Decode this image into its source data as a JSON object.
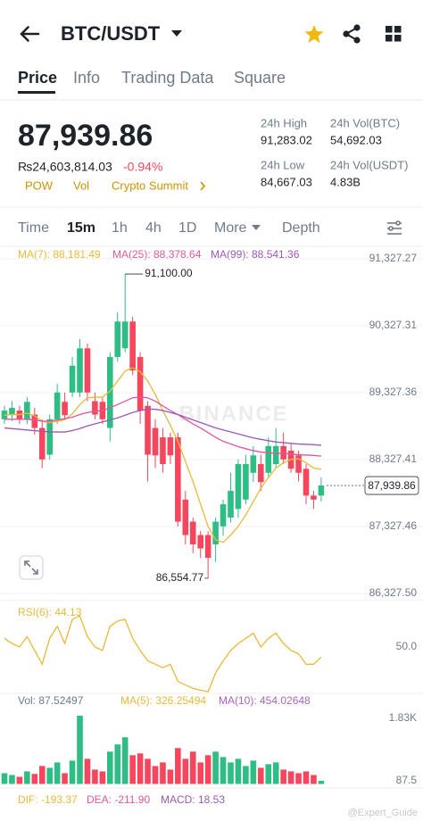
{
  "header": {
    "pair": "BTC/USDT"
  },
  "tabs": [
    "Price",
    "Info",
    "Trading Data",
    "Square"
  ],
  "ticker": {
    "price": "87,939.86",
    "fiat": "₨24,603,814.03",
    "change": "-0.94%",
    "tags": [
      "POW",
      "Vol",
      "Crypto Summit"
    ],
    "stats": [
      {
        "label": "24h High",
        "value": "91,283.02"
      },
      {
        "label": "24h Vol(BTC)",
        "value": "54,692.03"
      },
      {
        "label": "24h Low",
        "value": "84,667.03"
      },
      {
        "label": "24h Vol(USDT)",
        "value": "4.83B"
      }
    ]
  },
  "intervals": [
    "Time",
    "15m",
    "1h",
    "4h",
    "1D",
    "More",
    "Depth"
  ],
  "watermark": "BINANCE",
  "credit": "@Expert_Guide",
  "chart_data": [
    {
      "type": "candlestick",
      "legend": [
        "MA(7): 88,181.49",
        "MA(25): 88,378.64",
        "MA(99): 88,541.36"
      ],
      "up_color": "#2ebd85",
      "down_color": "#f6465d",
      "open": [
        88930,
        88990,
        89060,
        88930,
        89000,
        88800,
        88400,
        88930,
        89190,
        89330,
        89330,
        89990,
        89200,
        89190,
        88800,
        89860,
        89990,
        90390,
        89860,
        89130,
        88800,
        88660,
        88660,
        88660,
        87730,
        87400,
        87200,
        87200,
        87060,
        87330,
        87460,
        87590,
        87730,
        88130,
        88260,
        88130,
        88260,
        88530,
        88460,
        88390,
        88190,
        87790,
        87790
      ],
      "high": [
        89130,
        89200,
        89130,
        89260,
        89100,
        88930,
        89000,
        89460,
        89330,
        89860,
        90130,
        90060,
        89330,
        89260,
        89930,
        90530,
        91100,
        90460,
        89930,
        89200,
        88930,
        88800,
        88730,
        88730,
        87860,
        87460,
        87260,
        87260,
        87460,
        87730,
        88130,
        88330,
        88400,
        88530,
        88400,
        88660,
        88800,
        88730,
        88560,
        88460,
        88260,
        87860,
        88060
      ],
      "low": [
        88860,
        88900,
        88860,
        88860,
        88700,
        88200,
        88330,
        88860,
        88930,
        89260,
        89260,
        89200,
        88930,
        88860,
        88600,
        89790,
        89930,
        89590,
        88860,
        88000,
        88200,
        88130,
        88260,
        87330,
        87060,
        86930,
        86860,
        86554.77,
        86800,
        87190,
        87390,
        87460,
        87660,
        87990,
        87860,
        88060,
        88200,
        88260,
        88130,
        88000,
        87660,
        87590,
        87700
      ],
      "close": [
        89060,
        89100,
        88930,
        89190,
        88800,
        88330,
        88930,
        89330,
        88990,
        89730,
        89990,
        89330,
        89000,
        88930,
        89860,
        90390,
        90390,
        89660,
        89060,
        88400,
        88390,
        88260,
        88390,
        87400,
        87200,
        87060,
        87000,
        86860,
        87400,
        87660,
        87860,
        88260,
        88260,
        88390,
        87990,
        88530,
        88530,
        88330,
        88190,
        88130,
        87790,
        87730,
        87939.86
      ],
      "series": [
        {
          "color": "#e8b93a",
          "values": [
            88990,
            89000,
            89000,
            89020,
            88980,
            88900,
            88880,
            88900,
            88920,
            89010,
            89150,
            89250,
            89260,
            89260,
            89350,
            89500,
            89650,
            89700,
            89640,
            89500,
            89300,
            89060,
            88840,
            88600,
            88300,
            88000,
            87660,
            87330,
            87130,
            87090,
            87200,
            87330,
            87500,
            87700,
            87900,
            88060,
            88200,
            88280,
            88330,
            88340,
            88280,
            88200,
            88181.49
          ]
        },
        {
          "color": "#e0589b",
          "values": [
            88930,
            88930,
            88930,
            88930,
            88920,
            88900,
            88900,
            88920,
            88940,
            88960,
            89000,
            89030,
            89050,
            89060,
            89100,
            89150,
            89200,
            89250,
            89260,
            89250,
            89200,
            89130,
            89060,
            89000,
            88930,
            88860,
            88800,
            88730,
            88660,
            88600,
            88560,
            88520,
            88490,
            88460,
            88440,
            88430,
            88420,
            88420,
            88410,
            88400,
            88395,
            88390,
            88378.64
          ]
        },
        {
          "color": "#9b59b6",
          "values": [
            88800,
            88790,
            88780,
            88770,
            88760,
            88750,
            88740,
            88740,
            88740,
            88760,
            88790,
            88830,
            88860,
            88890,
            88920,
            88950,
            88990,
            89030,
            89060,
            89080,
            89080,
            89060,
            89030,
            89000,
            88960,
            88920,
            88880,
            88840,
            88800,
            88770,
            88740,
            88710,
            88680,
            88650,
            88630,
            88610,
            88590,
            88580,
            88570,
            88560,
            88555,
            88550,
            88541.36
          ]
        }
      ],
      "ylim": [
        86327.5,
        91327.27
      ],
      "yticks": [
        {
          "value": 91327.27,
          "label": "91,327.27"
        },
        {
          "value": 90327.31,
          "label": "90,327.31"
        },
        {
          "value": 89327.36,
          "label": "89,327.36"
        },
        {
          "value": 88327.41,
          "label": "88,327.41"
        },
        {
          "value": 87327.46,
          "label": "87,327.46"
        },
        {
          "value": 86327.5,
          "label": "86,327.50"
        }
      ],
      "grid": true,
      "annotations": [
        {
          "value": 91100,
          "label": "91,100.00"
        },
        {
          "value": 86554.77,
          "label": "86,554.77"
        }
      ],
      "last_price": {
        "value": 87939.86,
        "label": "87,939.86"
      }
    },
    {
      "type": "line",
      "legend": "RSI(6): 44.13",
      "color": "#e8b93a",
      "values": [
        55,
        52,
        50,
        56,
        48,
        40,
        55,
        62,
        52,
        66,
        68,
        56,
        50,
        48,
        62,
        65,
        66,
        55,
        48,
        42,
        40,
        38,
        40,
        30,
        28,
        26,
        25,
        24,
        35,
        42,
        48,
        52,
        55,
        58,
        50,
        55,
        58,
        52,
        48,
        46,
        40,
        40,
        44.13
      ],
      "ylim": [
        20,
        80
      ],
      "yticks": [
        {
          "value": 50,
          "label": "50.0"
        }
      ]
    },
    {
      "type": "bar",
      "legend": [
        "Vol: 87.52497",
        "MA(5): 326.25494",
        "MA(10): 454.02648"
      ],
      "values": [
        300,
        250,
        200,
        350,
        280,
        500,
        450,
        600,
        300,
        650,
        1900,
        700,
        400,
        350,
        900,
        1100,
        1300,
        800,
        850,
        700,
        500,
        600,
        400,
        1000,
        700,
        900,
        600,
        800,
        900,
        750,
        600,
        700,
        500,
        650,
        450,
        550,
        600,
        400,
        350,
        300,
        350,
        250,
        87.52497
      ],
      "ylim": [
        0,
        2000
      ],
      "yticks": [
        {
          "value": 1830,
          "label": "1.83K"
        },
        87.5
      ]
    }
  ],
  "macd_legend": [
    "DIF: -193.37",
    "DEA: -211.90",
    "MACD: 18.53"
  ]
}
